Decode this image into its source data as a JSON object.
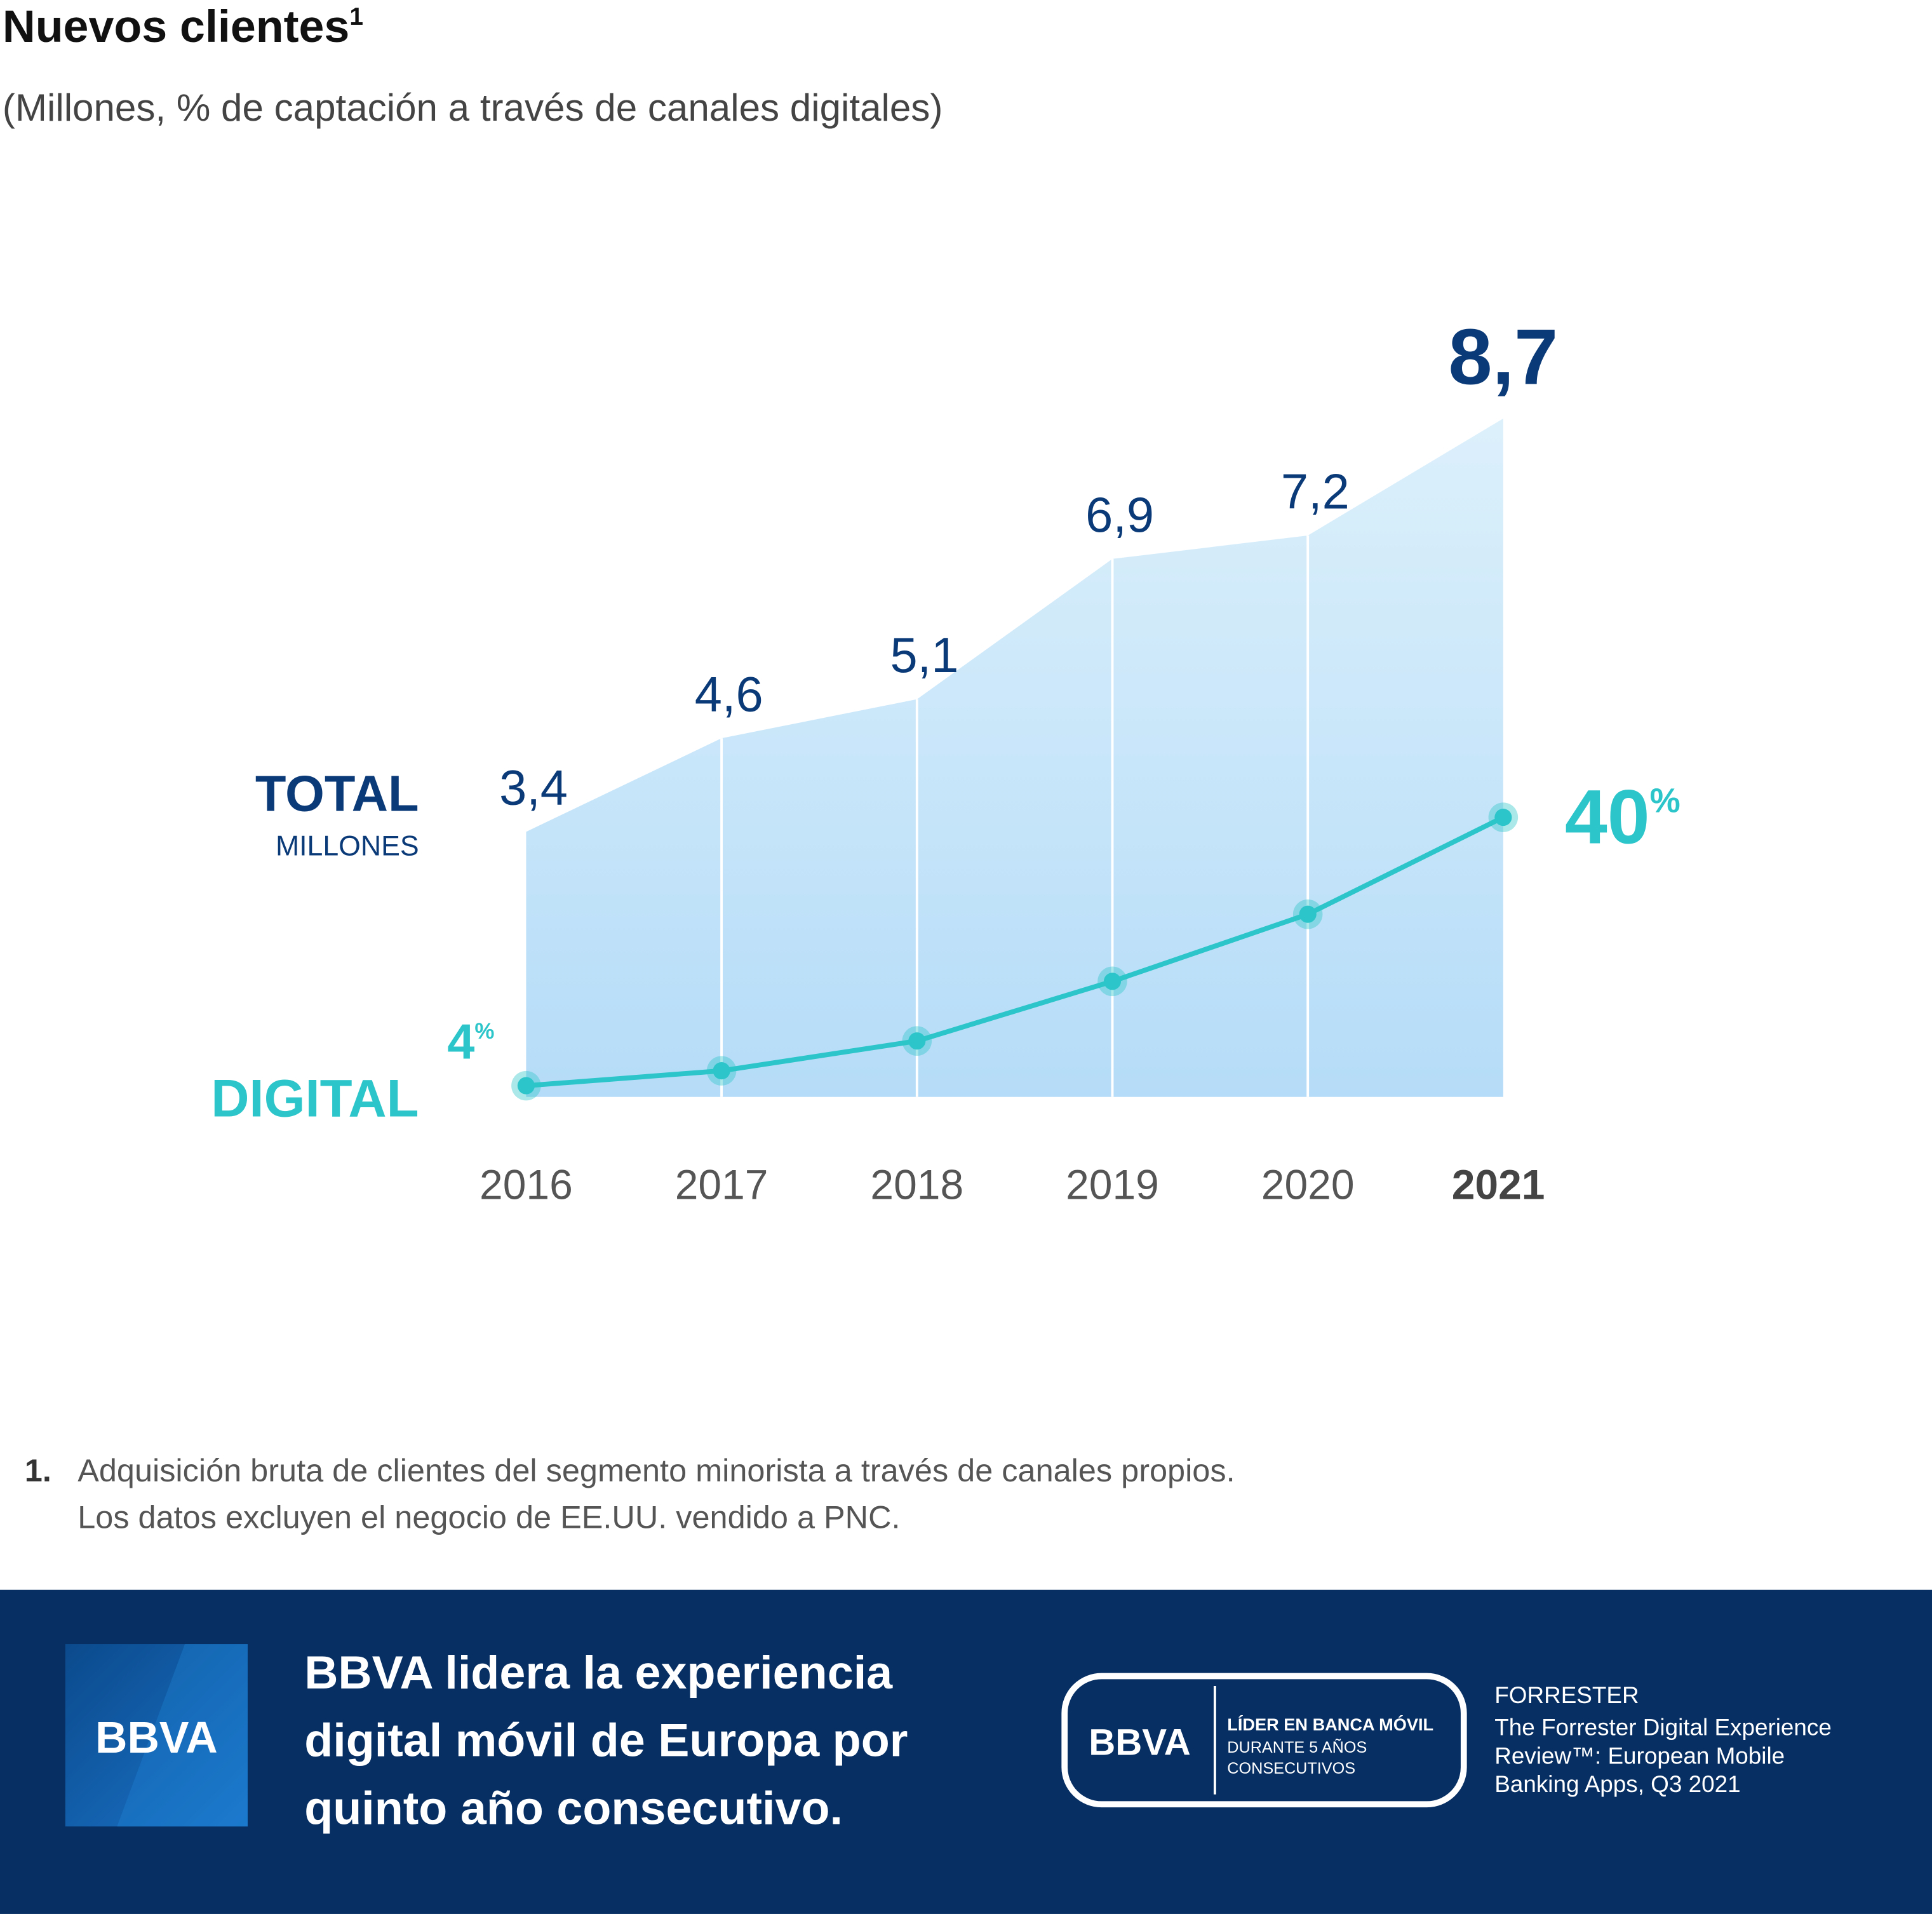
{
  "chart_data": {
    "type": "area-line",
    "title": "Nuevos clientes",
    "title_note": "1",
    "subtitle": "(Millones, % de captación a través de canales digitales)",
    "categories": [
      "2016",
      "2017",
      "2018",
      "2019",
      "2020",
      "2021"
    ],
    "series": [
      {
        "name": "TOTAL",
        "unit": "MILLONES",
        "color": "#0b3a78",
        "fill": [
          "#dcf0fb",
          "#b5dcf8"
        ],
        "values": [
          3.4,
          4.6,
          5.1,
          6.9,
          7.2,
          8.7
        ],
        "value_labels": [
          "3,4",
          "4,6",
          "5,1",
          "6,9",
          "7,2",
          "8,7"
        ]
      },
      {
        "name": "DIGITAL",
        "color": "#2cc5c9",
        "axis": "y2",
        "values": [
          4,
          6,
          10,
          18,
          27,
          40
        ],
        "value_labels": [
          "4%",
          null,
          null,
          null,
          null,
          "40%"
        ]
      }
    ],
    "ylim": [
      0,
      9.8
    ],
    "y2lim": [
      2.5,
      105
    ]
  },
  "footnote": {
    "number": "1.",
    "lines": [
      "Adquisición bruta de clientes del segmento minorista a través de canales propios.",
      "Los datos excluyen el negocio de EE.UU. vendido a PNC."
    ]
  },
  "banner": {
    "logo": "BBVA",
    "headline": [
      "BBVA lidera la experiencia",
      "digital móvil de Europa por",
      "quinto año consecutivo."
    ],
    "badge": {
      "logo": "BBVA",
      "lines": [
        "LÍDER EN BANCA MÓVIL",
        "DURANTE 5 AÑOS",
        "CONSECUTIVOS"
      ]
    },
    "source": {
      "brand": "FORRESTER",
      "lines": [
        "The Forrester Digital Experience",
        "Review™: European Mobile",
        "Banking Apps, Q3 2021"
      ]
    }
  }
}
